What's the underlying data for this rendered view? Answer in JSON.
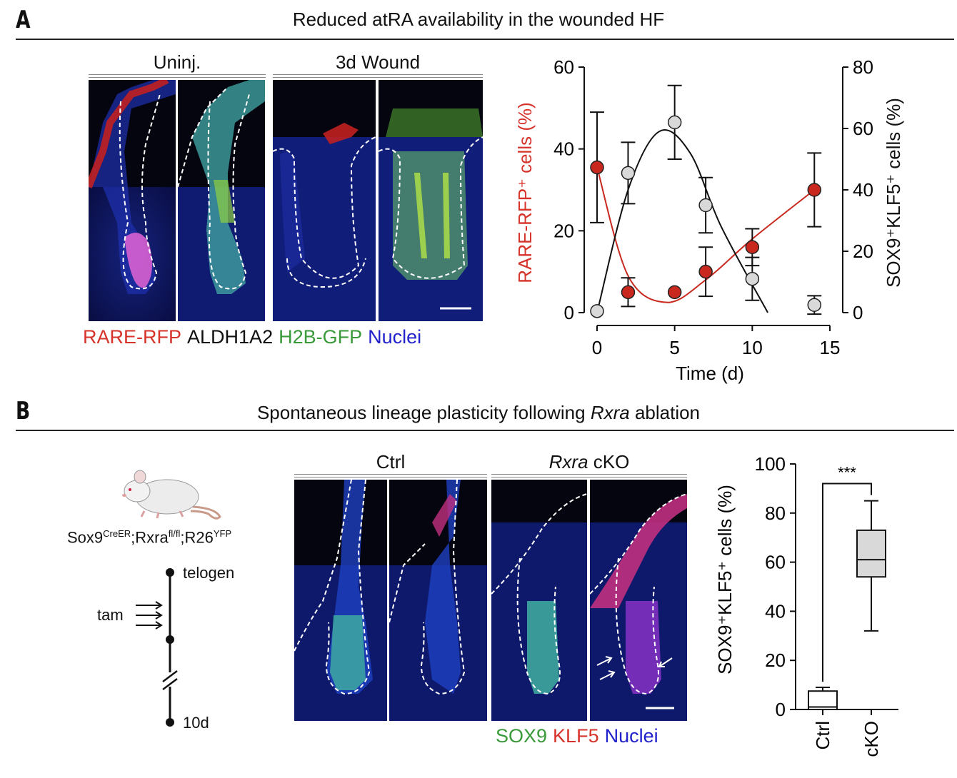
{
  "panel_a": {
    "letter": "A",
    "title": "Reduced atRA availability in the wounded HF",
    "group_labels": [
      "Uninj.",
      "3d Wound"
    ],
    "legend": [
      {
        "text": "RARE-RFP",
        "color": "#d6332a"
      },
      {
        "text": "ALDH1A2",
        "color": "#111111"
      },
      {
        "text": "H2B-GFP",
        "color": "#3a9a3a"
      },
      {
        "text": "Nuclei",
        "color": "#2222cc"
      }
    ]
  },
  "panel_b": {
    "letter": "B",
    "title_prefix": "Spontaneous lineage plasticity following ",
    "title_italic": "Rxra",
    "title_suffix": " ablation",
    "genotype": {
      "base1": "Sox9",
      "sup1": "CreER",
      "base2": ";Rxra",
      "sup2": "fl/fl",
      "base3": ";R26",
      "sup3": "YFP"
    },
    "timeline": {
      "top": "telogen",
      "left": "tam",
      "bottom": "10d"
    },
    "group_labels": {
      "ctrl": "Ctrl",
      "cko_italic": "Rxra",
      "cko_rest": " cKO"
    },
    "legend": [
      {
        "text": "SOX9",
        "color": "#3a9a3a"
      },
      {
        "text": "KLF5",
        "color": "#d6332a"
      },
      {
        "text": "Nuclei",
        "color": "#2222cc"
      }
    ]
  },
  "chart_data": [
    {
      "type": "scatter",
      "x_label": "Time (d)",
      "y_label_left": "RARE-RFP⁺ cells (%)",
      "y_label_right": "SOX9⁺KLF5⁺ cells (%)",
      "x_ticks": [
        "0",
        "5",
        "10",
        "15"
      ],
      "y_ticks_left": [
        "0",
        "20",
        "40",
        "60"
      ],
      "y_ticks_right": [
        "0",
        "20",
        "40",
        "60",
        "80"
      ],
      "xlim": [
        0,
        15
      ],
      "ylim_left": [
        0,
        60
      ],
      "ylim_right": [
        0,
        80
      ],
      "colors": {
        "rare": "#c8281e",
        "sox": "#d9d9d9",
        "fit_sox": "#111111"
      },
      "series": [
        {
          "name": "RARE-RFP⁺",
          "axis": "left",
          "x": [
            0,
            2,
            5,
            7,
            10,
            14
          ],
          "y": [
            35.5,
            5,
            5,
            10,
            16,
            30
          ],
          "err": [
            13.5,
            3.5,
            0,
            6,
            4.5,
            9
          ]
        },
        {
          "name": "SOX9⁺KLF5⁺",
          "axis": "right",
          "x": [
            0,
            2,
            5,
            7,
            10,
            14
          ],
          "y": [
            0.5,
            45.5,
            62,
            35,
            11,
            2.5
          ],
          "err": [
            0,
            10,
            12,
            9,
            7,
            3
          ]
        }
      ]
    },
    {
      "type": "box",
      "y_label": "SOX9⁺KLF5⁺ cells (%)",
      "y_ticks": [
        "0",
        "20",
        "40",
        "60",
        "80",
        "100"
      ],
      "ylim": [
        0,
        100
      ],
      "significance": "***",
      "categories": [
        "Ctrl",
        "cKO"
      ],
      "boxes": [
        {
          "name": "Ctrl",
          "min": 0,
          "q1": 0,
          "median": 1,
          "q3": 7.5,
          "max": 9,
          "fill": "#ffffff"
        },
        {
          "name": "cKO",
          "min": 32,
          "q1": 54,
          "median": 61,
          "q3": 73,
          "max": 85,
          "fill": "#d9d9d9"
        }
      ]
    }
  ]
}
